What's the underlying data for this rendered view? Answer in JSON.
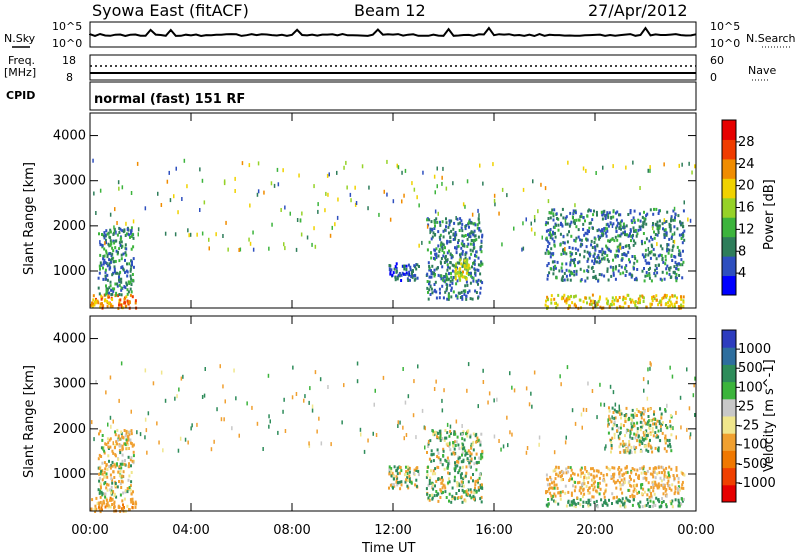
{
  "header": {
    "title": "Syowa East (fitACF)",
    "beam": "Beam 12",
    "date": "27/Apr/2012"
  },
  "noise_panel": {
    "left_label": "N.Sky",
    "right_label": "N.Search",
    "yticks_left": [
      "10^5",
      "10^0"
    ],
    "yticks_right": [
      "10^5",
      "10^0"
    ]
  },
  "freq_panel": {
    "left_label_top": "Freq.",
    "left_label_unit": "[MHz]",
    "left_label_cpid": "CPID",
    "right_label": "Nave",
    "yticks_left": [
      "18",
      "8"
    ],
    "yticks_right": [
      "60",
      "0"
    ]
  },
  "cpid_text": "normal (fast) 151 RF",
  "xaxis": {
    "label": "Time UT",
    "ticks": [
      "00:00",
      "04:00",
      "08:00",
      "12:00",
      "16:00",
      "20:00",
      "00:00"
    ],
    "range_hours": [
      0,
      24
    ]
  },
  "panels": [
    {
      "id": "power",
      "ylabel": "Slant Range [km]",
      "yticks": [
        "1000",
        "2000",
        "3000",
        "4000"
      ],
      "colorbar": {
        "label": "Power [dB]",
        "ticks": [
          "4",
          "8",
          "12",
          "16",
          "20",
          "24",
          "28"
        ],
        "colors": [
          "#0000ff",
          "#2e4fbf",
          "#2e7d5a",
          "#3cb43c",
          "#96d228",
          "#f0d200",
          "#f08c00",
          "#f03c00",
          "#e60000"
        ]
      }
    },
    {
      "id": "velocity",
      "ylabel": "Slant Range [km]",
      "yticks": [
        "1000",
        "2000",
        "3000",
        "4000"
      ],
      "colorbar": {
        "label": "Velocity [m s^-1]",
        "ticks": [
          "1000",
          "500",
          "100",
          "25",
          "-25",
          "-100",
          "-500",
          "-1000"
        ],
        "colors": [
          "#2d3cbe",
          "#2e6e9e",
          "#2e8c5a",
          "#3cb43c",
          "#c8c8c8",
          "#f0e68c",
          "#f0a030",
          "#f07800",
          "#f04000",
          "#e60000"
        ]
      }
    }
  ],
  "chart_data": [
    {
      "type": "line",
      "title": "",
      "series": [
        {
          "name": "N.Sky",
          "values_hours": [
            0,
            24
          ],
          "level": "10^5"
        },
        {
          "name": "N.Search",
          "values_hours": [
            0,
            24
          ],
          "level": "10^5"
        }
      ],
      "ylim": [
        "10^0",
        "10^5"
      ]
    },
    {
      "type": "line",
      "series": [
        {
          "name": "Freq.",
          "x_hours": [
            0,
            24
          ],
          "y": [
            12,
            12
          ]
        },
        {
          "name": "Nave",
          "x_hours": [
            0,
            24
          ],
          "y": [
            40,
            40
          ]
        }
      ],
      "ylim_left": [
        8,
        18
      ],
      "ylim_right": [
        0,
        60
      ]
    },
    {
      "type": "heatmap",
      "title": "Power",
      "xlabel": "Time UT",
      "ylabel": "Slant Range [km]",
      "xlim_hours": [
        0,
        24
      ],
      "ylim_km": [
        180,
        4500
      ],
      "clusters": [
        {
          "t0": 0.0,
          "t1": 1.8,
          "r0": 200,
          "r1": 500,
          "level": 26
        },
        {
          "t0": 0.3,
          "t1": 1.7,
          "r0": 500,
          "r1": 2000,
          "level": 10
        },
        {
          "t0": 11.8,
          "t1": 13.0,
          "r0": 800,
          "r1": 1200,
          "level": 6
        },
        {
          "t0": 13.3,
          "t1": 15.5,
          "r0": 400,
          "r1": 2200,
          "level": 9
        },
        {
          "t0": 14.4,
          "t1": 15.0,
          "r0": 800,
          "r1": 1300,
          "level": 20
        },
        {
          "t0": 18.0,
          "t1": 23.5,
          "r0": 200,
          "r1": 500,
          "level": 22
        },
        {
          "t0": 18.0,
          "t1": 23.5,
          "r0": 800,
          "r1": 2400,
          "level": 9
        }
      ]
    },
    {
      "type": "heatmap",
      "title": "Velocity",
      "xlabel": "Time UT",
      "ylabel": "Slant Range [km]",
      "xlim_hours": [
        0,
        24
      ],
      "ylim_km": [
        180,
        4500
      ],
      "clusters": [
        {
          "t0": 0.0,
          "t1": 1.8,
          "r0": 200,
          "r1": 500,
          "level": -300
        },
        {
          "t0": 0.3,
          "t1": 1.7,
          "r0": 500,
          "r1": 2000,
          "level": -80
        },
        {
          "t0": 11.8,
          "t1": 13.0,
          "r0": 700,
          "r1": 1200,
          "level": 0
        },
        {
          "t0": 13.3,
          "t1": 15.5,
          "r0": 400,
          "r1": 2000,
          "level": 50
        },
        {
          "t0": 18.0,
          "t1": 23.5,
          "r0": 300,
          "r1": 500,
          "level": 200
        },
        {
          "t0": 18.0,
          "t1": 23.5,
          "r0": 500,
          "r1": 1200,
          "level": -200
        },
        {
          "t0": 20.5,
          "t1": 23.0,
          "r0": 1500,
          "r1": 2500,
          "level": 0
        }
      ]
    }
  ]
}
